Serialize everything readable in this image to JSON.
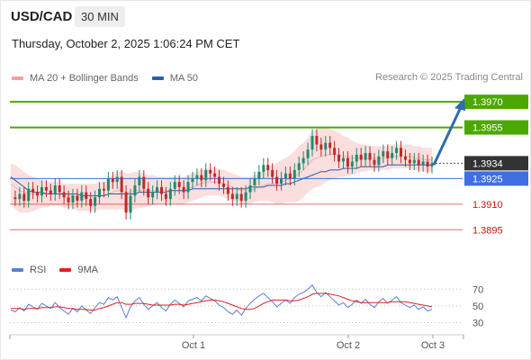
{
  "header": {
    "symbol": "USD/CAD",
    "timeframe": "30 MIN"
  },
  "datetime": "Thursday, October 2, 2025 1:06:24 PM CET",
  "legend": {
    "bollinger": {
      "label": "MA 20 + Bollinger Bands",
      "color": "#f4a0a0"
    },
    "ma50": {
      "label": "MA 50",
      "color": "#2a5fa5"
    }
  },
  "copyright": "Research © 2025 Trading Central",
  "rsi_legend": {
    "rsi": {
      "label": "RSI",
      "color": "#5b7fd6"
    },
    "ma9": {
      "label": "9MA",
      "color": "#e02020"
    }
  },
  "colors": {
    "green": "#4ca800",
    "blue_level": "#3f6fe0",
    "red_level": "#d01010",
    "current": "#333333",
    "arrow": "#2f6cb0",
    "up_candle": "#1e8c6e",
    "down_candle": "#c02828"
  },
  "chart_data": [
    {
      "type": "candlestick",
      "ylim": [
        1.3883,
        1.3978
      ],
      "x_ticks": [
        "Oct 1",
        "Oct 2",
        "Oct 3"
      ],
      "levels": [
        {
          "label": "1.3970",
          "value": 1.397,
          "style": "green"
        },
        {
          "label": "1.3955",
          "value": 1.3955,
          "style": "green"
        },
        {
          "label": "1.3934",
          "value": 1.3934,
          "style": "current"
        },
        {
          "label": "1.3925",
          "value": 1.3925,
          "style": "blue"
        },
        {
          "label": "1.3910",
          "value": 1.391,
          "style": "red"
        },
        {
          "label": "1.3895",
          "value": 1.3895,
          "style": "red"
        }
      ],
      "forecast_arrow": {
        "from": 1.3933,
        "to": 1.397
      },
      "close_points": [
        1.3914,
        1.3913,
        1.3916,
        1.3912,
        1.3919,
        1.3917,
        1.3915,
        1.392,
        1.3918,
        1.3916,
        1.3921,
        1.3917,
        1.3914,
        1.3911,
        1.3915,
        1.3912,
        1.3917,
        1.3913,
        1.3909,
        1.3914,
        1.3919,
        1.3918,
        1.3925,
        1.3923,
        1.3926,
        1.3917,
        1.3905,
        1.3915,
        1.3921,
        1.3926,
        1.3919,
        1.3914,
        1.3917,
        1.392,
        1.3916,
        1.3913,
        1.3919,
        1.3923,
        1.392,
        1.3917,
        1.3923,
        1.3925,
        1.3927,
        1.3924,
        1.393,
        1.3928,
        1.3926,
        1.3922,
        1.392,
        1.3916,
        1.3913,
        1.3916,
        1.3912,
        1.3917,
        1.3921,
        1.3925,
        1.3929,
        1.3933,
        1.393,
        1.3926,
        1.3922,
        1.3925,
        1.3928,
        1.3925,
        1.393,
        1.3934,
        1.3937,
        1.3942,
        1.395,
        1.3945,
        1.3942,
        1.3946,
        1.3943,
        1.3939,
        1.3935,
        1.3937,
        1.3932,
        1.3935,
        1.3939,
        1.3936,
        1.394,
        1.3936,
        1.3933,
        1.3938,
        1.3941,
        1.3937,
        1.394,
        1.3943,
        1.3938,
        1.3936,
        1.3934,
        1.3936,
        1.3933,
        1.3935,
        1.3932,
        1.3934
      ],
      "ma50_points": [
        1.3926,
        1.3924,
        1.3922,
        1.392,
        1.3918,
        1.3917,
        1.3917,
        1.3917,
        1.3916,
        1.3916,
        1.3916,
        1.3916,
        1.3916,
        1.3916,
        1.3916,
        1.3916,
        1.3915,
        1.3915,
        1.3915,
        1.3915,
        1.3915,
        1.3915,
        1.3916,
        1.3916,
        1.3916,
        1.3916,
        1.3916,
        1.3916,
        1.3916,
        1.3917,
        1.3917,
        1.3917,
        1.3917,
        1.3917,
        1.3917,
        1.3917,
        1.3918,
        1.3918,
        1.3918,
        1.3918,
        1.3918,
        1.3919,
        1.3919,
        1.3919,
        1.3919,
        1.3919,
        1.3919,
        1.3919,
        1.3919,
        1.3919,
        1.3919,
        1.3919,
        1.3919,
        1.3919,
        1.392,
        1.392,
        1.392,
        1.392,
        1.3921,
        1.3921,
        1.3921,
        1.3921,
        1.3922,
        1.3922,
        1.3923,
        1.3924,
        1.3925,
        1.3926,
        1.3927,
        1.3928,
        1.3929,
        1.3929,
        1.393,
        1.393,
        1.393,
        1.3931,
        1.3931,
        1.3931,
        1.3931,
        1.3932,
        1.3932,
        1.3932,
        1.3932,
        1.3932,
        1.3932,
        1.3933,
        1.3933,
        1.3933,
        1.3933,
        1.3933,
        1.3933,
        1.3933,
        1.3933,
        1.3933,
        1.3933,
        1.3933
      ],
      "bb_mid_points": [
        1.3922,
        1.392,
        1.3918,
        1.3917,
        1.3916,
        1.3916,
        1.3916,
        1.3916,
        1.3916,
        1.3916,
        1.3916,
        1.3916,
        1.3915,
        1.3915,
        1.3915,
        1.3914,
        1.3914,
        1.3914,
        1.3914,
        1.3914,
        1.3915,
        1.3915,
        1.3916,
        1.3917,
        1.3918,
        1.3918,
        1.3917,
        1.3917,
        1.3918,
        1.3918,
        1.3918,
        1.3918,
        1.3918,
        1.3918,
        1.3918,
        1.3918,
        1.3918,
        1.3918,
        1.3918,
        1.3918,
        1.3919,
        1.392,
        1.3921,
        1.3922,
        1.3923,
        1.3923,
        1.3923,
        1.3923,
        1.3922,
        1.3921,
        1.392,
        1.3919,
        1.3918,
        1.3918,
        1.3918,
        1.3919,
        1.392,
        1.3921,
        1.3922,
        1.3922,
        1.3922,
        1.3923,
        1.3924,
        1.3925,
        1.3926,
        1.3928,
        1.393,
        1.3933,
        1.3936,
        1.3937,
        1.3938,
        1.3939,
        1.3939,
        1.3939,
        1.3939,
        1.3938,
        1.3938,
        1.3937,
        1.3937,
        1.3937,
        1.3937,
        1.3937,
        1.3937,
        1.3937,
        1.3937,
        1.3937,
        1.3938,
        1.3938,
        1.3938,
        1.3938,
        1.3938,
        1.3937,
        1.3937,
        1.3936,
        1.3936,
        1.3936
      ],
      "bb_halfwidth_points": [
        0.0012,
        0.0013,
        0.0013,
        0.0012,
        0.0011,
        0.001,
        0.0009,
        0.0008,
        0.0008,
        0.0007,
        0.0007,
        0.0007,
        0.0007,
        0.0007,
        0.0007,
        0.0008,
        0.0008,
        0.0008,
        0.0008,
        0.0008,
        0.0008,
        0.0008,
        0.0009,
        0.001,
        0.0011,
        0.0011,
        0.0011,
        0.0011,
        0.0011,
        0.001,
        0.001,
        0.0009,
        0.0009,
        0.0008,
        0.0008,
        0.0008,
        0.0008,
        0.0008,
        0.0008,
        0.0008,
        0.0008,
        0.0008,
        0.0008,
        0.0008,
        0.0008,
        0.0008,
        0.0008,
        0.0008,
        0.0008,
        0.0008,
        0.0008,
        0.0008,
        0.0008,
        0.0008,
        0.0008,
        0.0008,
        0.0008,
        0.0009,
        0.001,
        0.0011,
        0.0012,
        0.0013,
        0.0013,
        0.0014,
        0.0015,
        0.0016,
        0.0016,
        0.0016,
        0.0017,
        0.0017,
        0.0017,
        0.0016,
        0.0015,
        0.0014,
        0.0013,
        0.0012,
        0.0011,
        0.001,
        0.0009,
        0.0008,
        0.0008,
        0.0007,
        0.0007,
        0.0007,
        0.0007,
        0.0007,
        0.0007,
        0.0007,
        0.0007,
        0.0007,
        0.0007,
        0.0007,
        0.0007,
        0.0007,
        0.0007,
        0.0007
      ]
    },
    {
      "type": "line",
      "name": "RSI",
      "ylim": [
        22,
        80
      ],
      "y_ticks": [
        70,
        50,
        30
      ],
      "rsi_points": [
        45,
        43,
        48,
        44,
        52,
        49,
        46,
        53,
        50,
        47,
        54,
        48,
        44,
        40,
        47,
        43,
        50,
        45,
        41,
        48,
        54,
        52,
        60,
        57,
        61,
        48,
        36,
        49,
        56,
        60,
        52,
        46,
        50,
        54,
        48,
        44,
        52,
        57,
        53,
        49,
        56,
        58,
        60,
        56,
        62,
        59,
        56,
        51,
        48,
        43,
        40,
        45,
        39,
        47,
        53,
        58,
        62,
        65,
        60,
        55,
        49,
        53,
        57,
        53,
        60,
        64,
        66,
        70,
        75,
        66,
        61,
        66,
        61,
        56,
        51,
        54,
        48,
        52,
        57,
        53,
        58,
        52,
        48,
        55,
        59,
        53,
        57,
        61,
        54,
        51,
        48,
        51,
        46,
        49,
        44,
        46
      ],
      "ma9_points": [
        47,
        47,
        47,
        46,
        47,
        47,
        47,
        48,
        48,
        48,
        49,
        49,
        48,
        47,
        47,
        46,
        46,
        46,
        45,
        45,
        47,
        48,
        50,
        52,
        54,
        54,
        52,
        52,
        53,
        53,
        53,
        52,
        51,
        51,
        51,
        51,
        51,
        52,
        52,
        51,
        52,
        53,
        54,
        55,
        56,
        57,
        57,
        56,
        55,
        53,
        51,
        49,
        47,
        46,
        46,
        47,
        50,
        53,
        55,
        57,
        57,
        57,
        57,
        56,
        56,
        57,
        59,
        61,
        64,
        65,
        65,
        65,
        64,
        63,
        62,
        60,
        58,
        56,
        55,
        54,
        54,
        54,
        54,
        54,
        54,
        54,
        55,
        55,
        55,
        55,
        54,
        53,
        52,
        51,
        50,
        49
      ]
    }
  ]
}
